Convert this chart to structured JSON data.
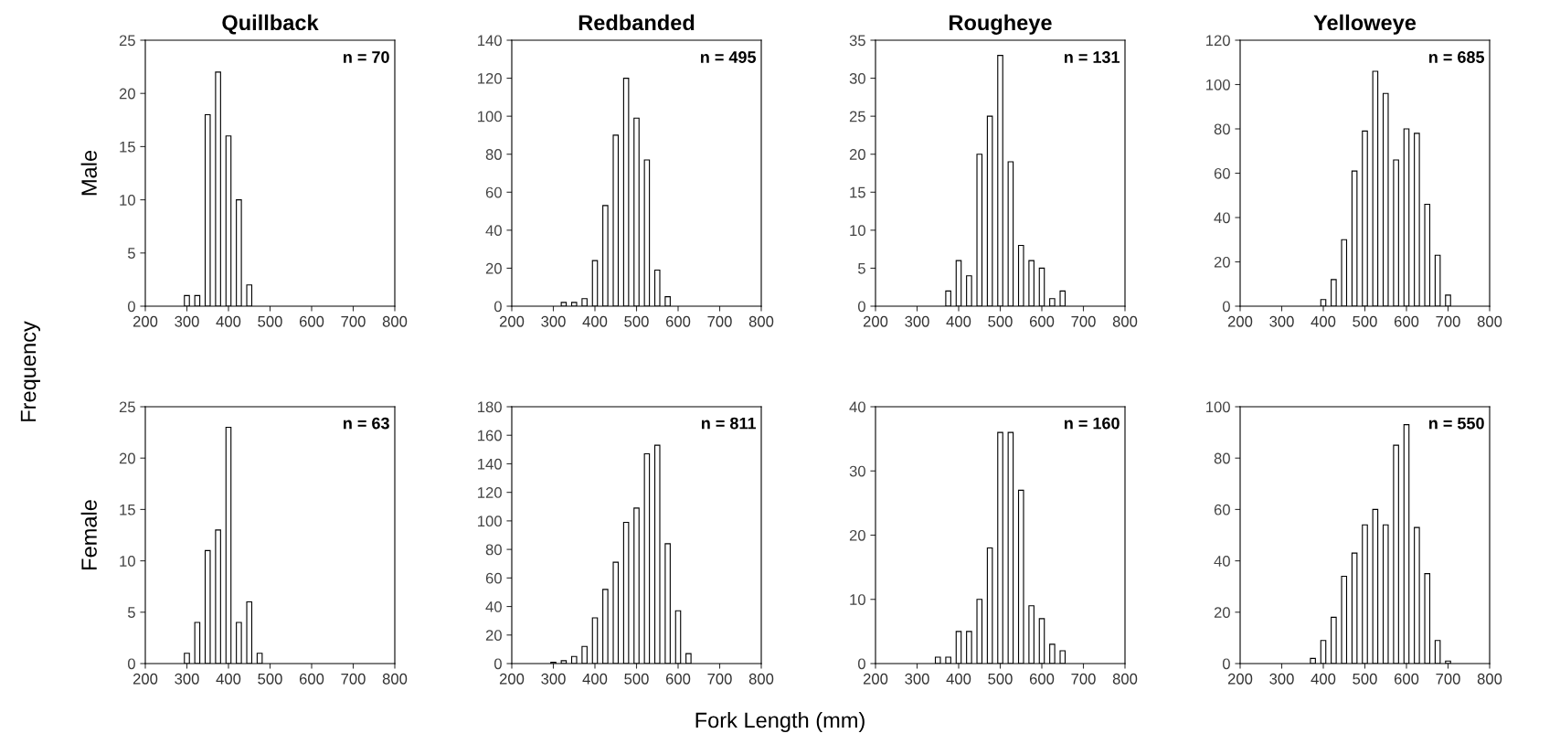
{
  "chart_data": [
    {
      "type": "bar",
      "title": "Quillback",
      "ylabel": "Male",
      "x": [
        300,
        325,
        350,
        375,
        400,
        425,
        450
      ],
      "values": [
        1,
        1,
        18,
        22,
        16,
        10,
        2
      ],
      "color": "#ffffff",
      "xlim": [
        200,
        800
      ],
      "xticks": [
        200,
        300,
        400,
        500,
        600,
        700,
        800
      ],
      "ylim": [
        0,
        25
      ],
      "yticks": [
        0,
        5,
        10,
        15,
        20,
        25
      ],
      "annotations": [
        "n = 70",
        "Frequency"
      ]
    },
    {
      "type": "bar",
      "title": "Redbanded",
      "x": [
        325,
        350,
        375,
        400,
        425,
        450,
        475,
        500,
        525,
        550,
        575
      ],
      "values": [
        2,
        2,
        4,
        24,
        53,
        90,
        120,
        99,
        77,
        19,
        5
      ],
      "color": "#ffffff",
      "xlim": [
        200,
        800
      ],
      "xticks": [
        200,
        300,
        400,
        500,
        600,
        700,
        800
      ],
      "ylim": [
        0,
        140
      ],
      "yticks": [
        0,
        20,
        40,
        60,
        80,
        100,
        120,
        140
      ],
      "annotations": [
        "n = 495"
      ]
    },
    {
      "type": "bar",
      "title": "Rougheye",
      "x": [
        375,
        400,
        425,
        450,
        475,
        500,
        525,
        550,
        575,
        600,
        625,
        650
      ],
      "values": [
        2,
        6,
        4,
        20,
        25,
        33,
        19,
        8,
        6,
        5,
        1,
        2
      ],
      "color": "#ffffff",
      "xlim": [
        200,
        800
      ],
      "xticks": [
        200,
        300,
        400,
        500,
        600,
        700,
        800
      ],
      "ylim": [
        0,
        35
      ],
      "yticks": [
        0,
        5,
        10,
        15,
        20,
        25,
        30,
        35
      ],
      "annotations": [
        "n = 131"
      ]
    },
    {
      "type": "bar",
      "title": "Yelloweye",
      "x": [
        400,
        425,
        450,
        475,
        500,
        525,
        550,
        575,
        600,
        625,
        650,
        675,
        700
      ],
      "values": [
        3,
        12,
        30,
        61,
        79,
        106,
        96,
        66,
        80,
        78,
        46,
        23,
        5
      ],
      "color": "#ffffff",
      "xlim": [
        200,
        800
      ],
      "xticks": [
        200,
        300,
        400,
        500,
        600,
        700,
        800
      ],
      "ylim": [
        0,
        120
      ],
      "yticks": [
        0,
        20,
        40,
        60,
        80,
        100,
        120
      ],
      "annotations": [
        "n = 685"
      ]
    },
    {
      "type": "bar",
      "ylabel": "Female",
      "x": [
        300,
        325,
        350,
        375,
        400,
        425,
        450,
        475
      ],
      "values": [
        1,
        4,
        11,
        13,
        23,
        4,
        6,
        1
      ],
      "color": "#ffffff",
      "xlim": [
        200,
        800
      ],
      "xticks": [
        200,
        300,
        400,
        500,
        600,
        700,
        800
      ],
      "ylim": [
        0,
        25
      ],
      "yticks": [
        0,
        5,
        10,
        15,
        20,
        25
      ],
      "annotations": [
        "n = 63",
        "Fork Length (mm)"
      ]
    },
    {
      "type": "bar",
      "x": [
        300,
        325,
        350,
        375,
        400,
        425,
        450,
        475,
        500,
        525,
        550,
        575,
        600,
        625
      ],
      "values": [
        1,
        2,
        5,
        12,
        32,
        52,
        71,
        99,
        109,
        147,
        153,
        84,
        37,
        7
      ],
      "color": "#ffffff",
      "xlim": [
        200,
        800
      ],
      "xticks": [
        200,
        300,
        400,
        500,
        600,
        700,
        800
      ],
      "ylim": [
        0,
        180
      ],
      "yticks": [
        0,
        20,
        40,
        60,
        80,
        100,
        120,
        140,
        160,
        180
      ],
      "annotations": [
        "n = 811"
      ]
    },
    {
      "type": "bar",
      "x": [
        350,
        375,
        400,
        425,
        450,
        475,
        500,
        525,
        550,
        575,
        600,
        625,
        650
      ],
      "values": [
        1,
        1,
        5,
        5,
        10,
        18,
        36,
        36,
        27,
        9,
        7,
        3,
        2
      ],
      "color": "#ffffff",
      "xlim": [
        200,
        800
      ],
      "xticks": [
        200,
        300,
        400,
        500,
        600,
        700,
        800
      ],
      "ylim": [
        0,
        40
      ],
      "yticks": [
        0,
        10,
        20,
        30,
        40
      ],
      "annotations": [
        "n = 160"
      ]
    },
    {
      "type": "bar",
      "x": [
        375,
        400,
        425,
        450,
        475,
        500,
        525,
        550,
        575,
        600,
        625,
        650,
        675,
        700
      ],
      "values": [
        2,
        9,
        18,
        34,
        43,
        54,
        60,
        54,
        85,
        93,
        53,
        35,
        9,
        1
      ],
      "color": "#ffffff",
      "xlim": [
        200,
        800
      ],
      "xticks": [
        200,
        300,
        400,
        500,
        600,
        700,
        800
      ],
      "ylim": [
        0,
        100
      ],
      "yticks": [
        0,
        20,
        40,
        60,
        80,
        100
      ],
      "annotations": [
        "n = 550"
      ]
    }
  ]
}
